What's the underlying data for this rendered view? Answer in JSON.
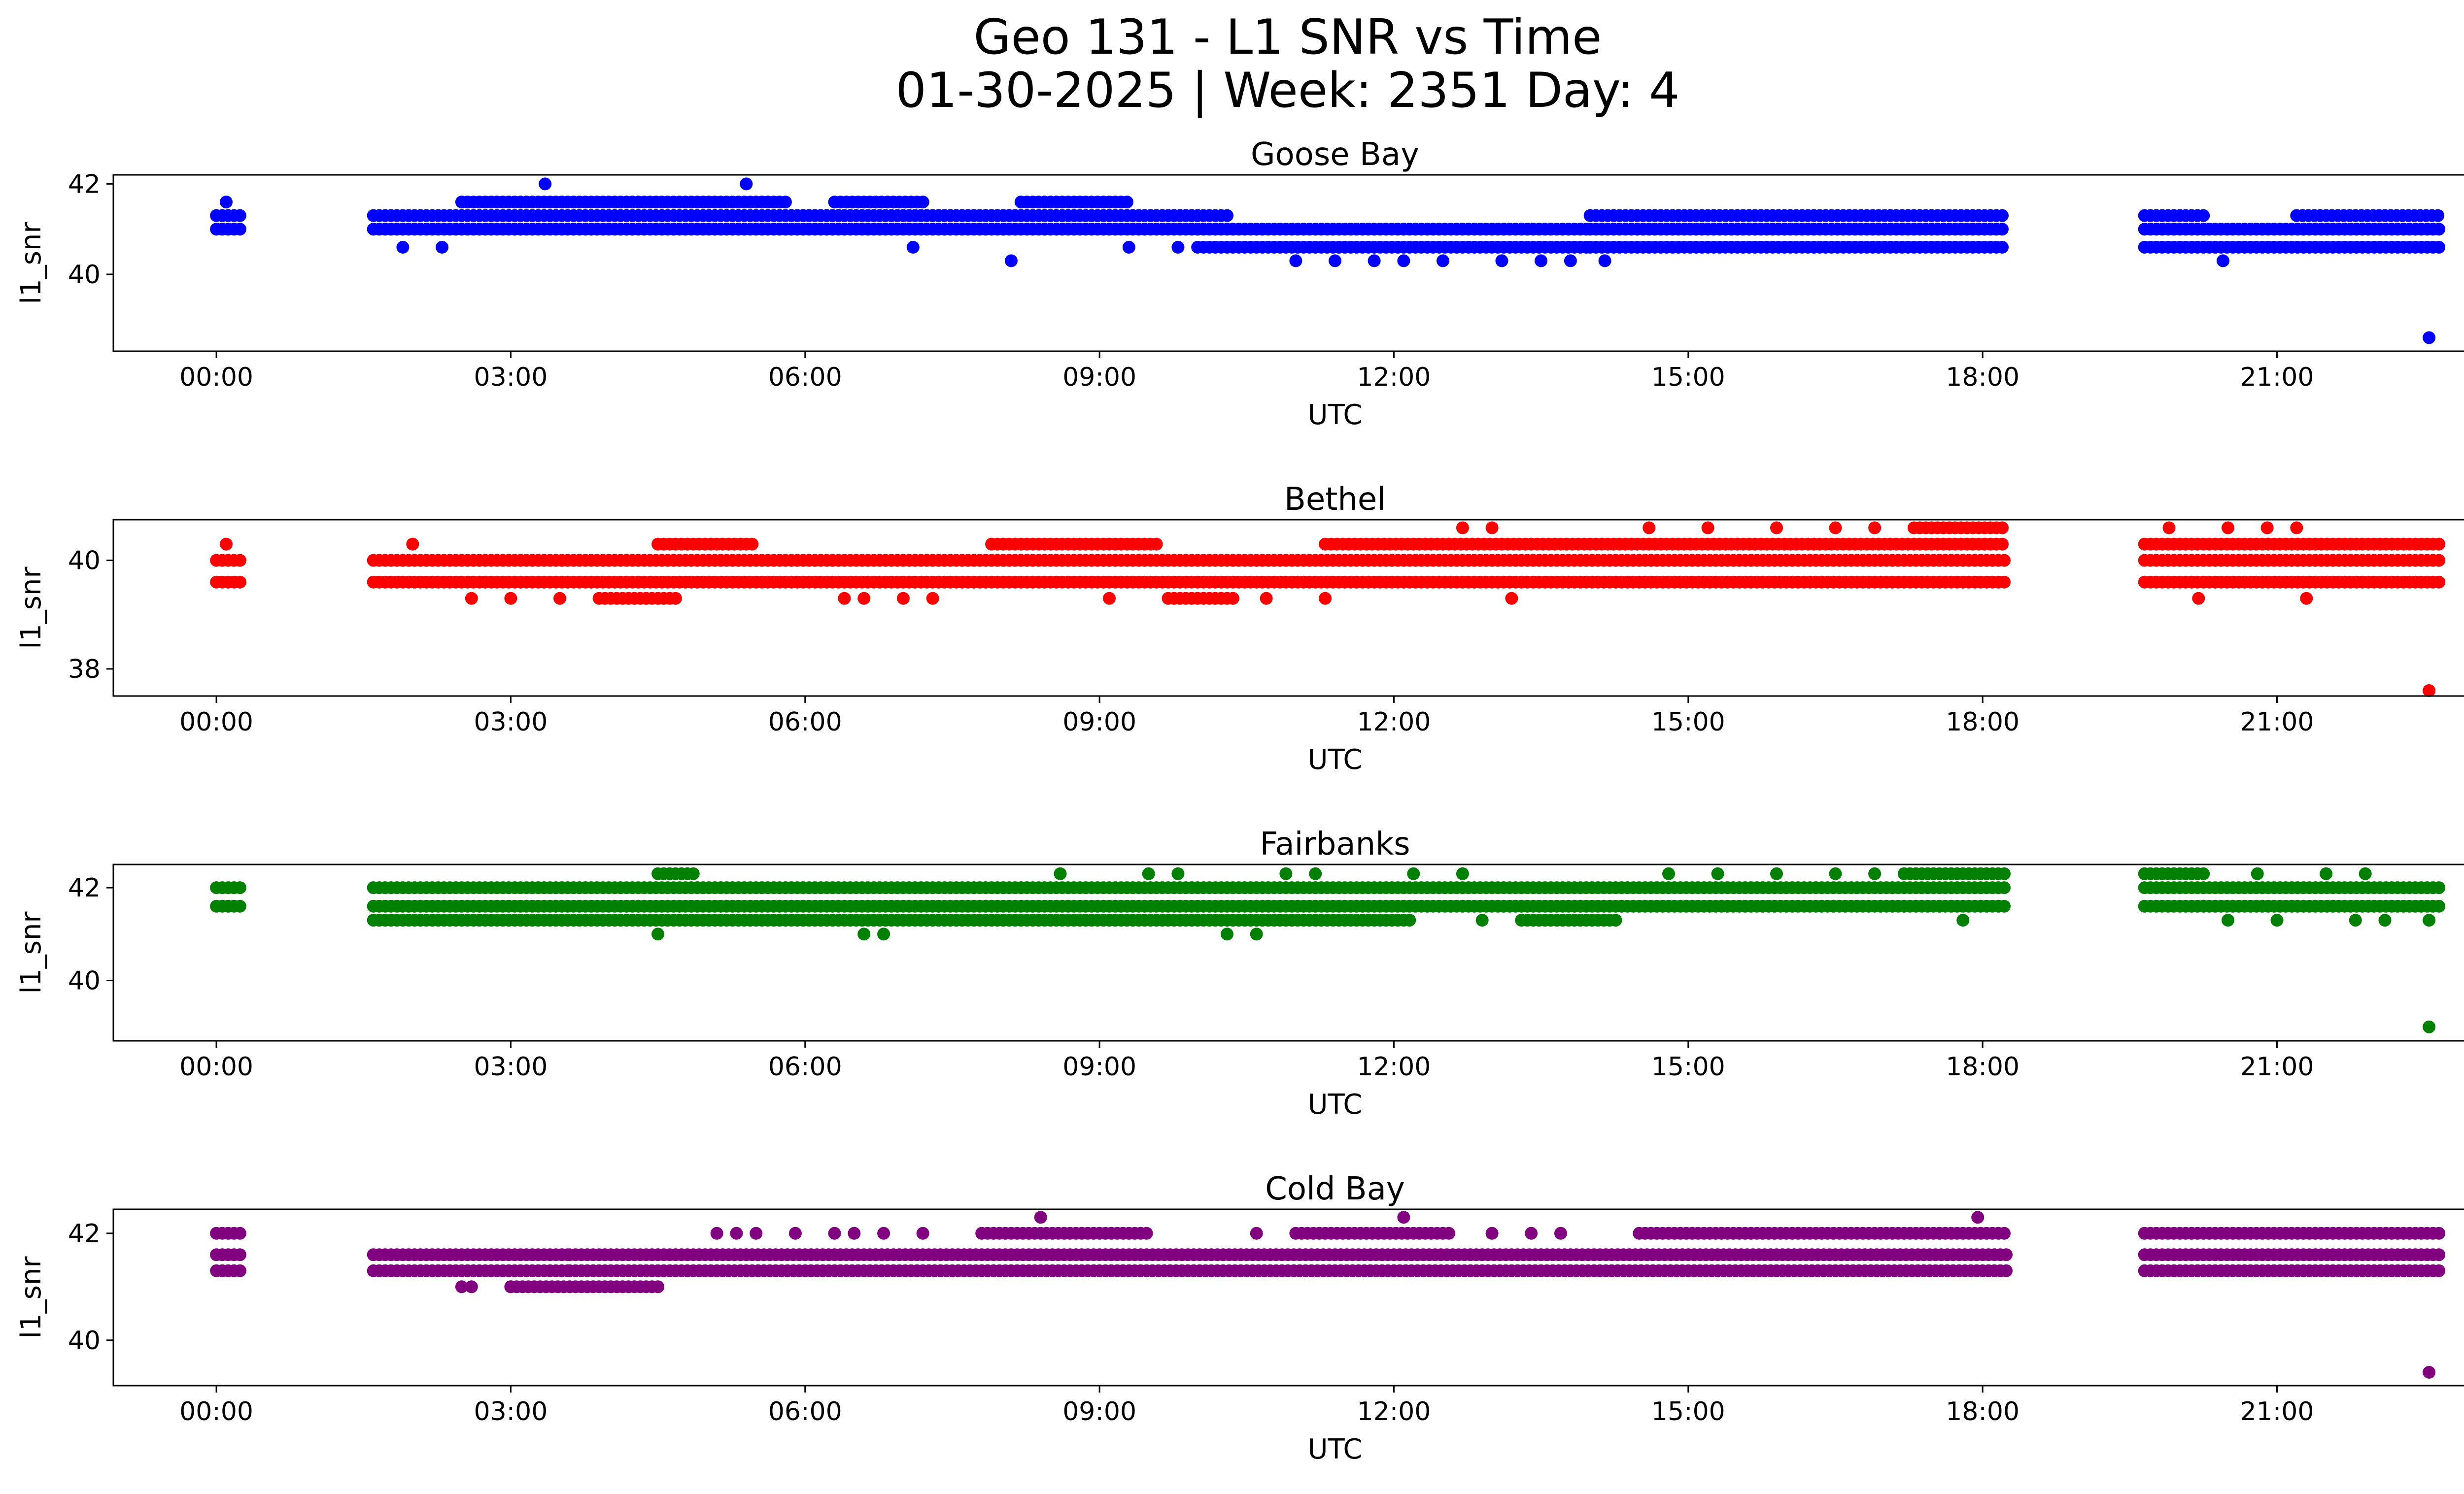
{
  "figure": {
    "title_line1": "Geo 131 - L1 SNR vs Time",
    "title_line2": "01-30-2025 | Week: 2351 Day: 4"
  },
  "chart_data": [
    {
      "type": "scatter",
      "title": "Goose Bay",
      "color": "#0000ff",
      "xlabel": "UTC",
      "ylabel": "l1_snr",
      "x_unit": "hours UTC",
      "xlim": [
        -1.05,
        23.85
      ],
      "ylim": [
        38.3,
        42.2
      ],
      "x_ticks": [
        0,
        3,
        6,
        9,
        12,
        15,
        18,
        21
      ],
      "x_tick_labels": [
        "00:00",
        "03:00",
        "06:00",
        "09:00",
        "12:00",
        "15:00",
        "18:00",
        "21:00"
      ],
      "y_ticks": [
        40,
        42
      ],
      "y_tick_labels": [
        "40",
        "42"
      ],
      "segments": [
        {
          "start": 0.0,
          "end": 0.25,
          "levels": [
            41.0,
            41.3
          ]
        },
        {
          "start": 1.6,
          "end": 10.0,
          "levels": [
            41.0,
            41.3
          ]
        },
        {
          "start": 2.5,
          "end": 5.8,
          "levels": [
            41.6
          ]
        },
        {
          "start": 5.8,
          "end": 10.3,
          "levels": [
            41.3
          ]
        },
        {
          "start": 6.3,
          "end": 7.2,
          "levels": [
            41.6
          ]
        },
        {
          "start": 8.2,
          "end": 9.3,
          "levels": [
            41.6
          ]
        },
        {
          "start": 10.0,
          "end": 14.0,
          "levels": [
            40.6,
            41.0
          ]
        },
        {
          "start": 14.0,
          "end": 18.25,
          "levels": [
            40.6,
            41.0,
            41.3
          ]
        },
        {
          "start": 19.65,
          "end": 22.65,
          "levels": [
            40.6,
            41.0
          ]
        },
        {
          "start": 19.65,
          "end": 20.3,
          "levels": [
            41.3
          ]
        },
        {
          "start": 21.2,
          "end": 22.65,
          "levels": [
            41.3
          ]
        }
      ],
      "points": [
        [
          0.1,
          41.6
        ],
        [
          3.35,
          42.0
        ],
        [
          5.4,
          42.0
        ],
        [
          8.1,
          40.3
        ],
        [
          11.0,
          40.3
        ],
        [
          11.4,
          40.3
        ],
        [
          11.8,
          40.3
        ],
        [
          12.1,
          40.3
        ],
        [
          12.5,
          40.3
        ],
        [
          13.1,
          40.3
        ],
        [
          13.5,
          40.3
        ],
        [
          13.8,
          40.3
        ],
        [
          14.15,
          40.3
        ],
        [
          20.45,
          40.3
        ],
        [
          1.9,
          40.6
        ],
        [
          2.3,
          40.6
        ],
        [
          7.1,
          40.6
        ],
        [
          9.3,
          40.6
        ],
        [
          9.8,
          40.6
        ],
        [
          22.55,
          38.6
        ]
      ]
    },
    {
      "type": "scatter",
      "title": "Bethel",
      "color": "#ff0000",
      "xlabel": "UTC",
      "ylabel": "l1_snr",
      "x_unit": "hours UTC",
      "xlim": [
        -1.05,
        23.85
      ],
      "ylim": [
        37.5,
        40.75
      ],
      "x_ticks": [
        0,
        3,
        6,
        9,
        12,
        15,
        18,
        21
      ],
      "x_tick_labels": [
        "00:00",
        "03:00",
        "06:00",
        "09:00",
        "12:00",
        "15:00",
        "18:00",
        "21:00"
      ],
      "y_ticks": [
        38,
        40
      ],
      "y_tick_labels": [
        "38",
        "40"
      ],
      "segments": [
        {
          "start": 0.0,
          "end": 0.25,
          "levels": [
            39.6,
            40.0
          ]
        },
        {
          "start": 1.6,
          "end": 18.25,
          "levels": [
            39.6,
            40.0
          ]
        },
        {
          "start": 4.5,
          "end": 5.5,
          "levels": [
            40.3
          ]
        },
        {
          "start": 7.9,
          "end": 9.6,
          "levels": [
            40.3
          ]
        },
        {
          "start": 11.3,
          "end": 18.25,
          "levels": [
            40.3
          ]
        },
        {
          "start": 19.65,
          "end": 22.65,
          "levels": [
            39.6,
            40.0,
            40.3
          ]
        },
        {
          "start": 17.3,
          "end": 18.25,
          "levels": [
            40.6
          ]
        },
        {
          "start": 9.7,
          "end": 10.4,
          "levels": [
            39.3
          ]
        },
        {
          "start": 3.9,
          "end": 4.7,
          "levels": [
            39.3
          ]
        }
      ],
      "points": [
        [
          0.1,
          40.3
        ],
        [
          2.0,
          40.3
        ],
        [
          2.6,
          39.3
        ],
        [
          3.0,
          39.3
        ],
        [
          3.5,
          39.3
        ],
        [
          6.4,
          39.3
        ],
        [
          6.6,
          39.3
        ],
        [
          7.0,
          39.3
        ],
        [
          7.3,
          39.3
        ],
        [
          9.1,
          39.3
        ],
        [
          10.7,
          39.3
        ],
        [
          11.3,
          39.3
        ],
        [
          13.2,
          39.3
        ],
        [
          20.2,
          39.3
        ],
        [
          21.3,
          39.3
        ],
        [
          12.7,
          40.6
        ],
        [
          13.0,
          40.6
        ],
        [
          14.6,
          40.6
        ],
        [
          15.2,
          40.6
        ],
        [
          15.9,
          40.6
        ],
        [
          16.5,
          40.6
        ],
        [
          16.9,
          40.6
        ],
        [
          19.9,
          40.6
        ],
        [
          20.5,
          40.6
        ],
        [
          20.9,
          40.6
        ],
        [
          21.2,
          40.6
        ],
        [
          22.55,
          37.6
        ]
      ]
    },
    {
      "type": "scatter",
      "title": "Fairbanks",
      "color": "#008000",
      "xlabel": "UTC",
      "ylabel": "l1_snr",
      "x_unit": "hours UTC",
      "xlim": [
        -1.05,
        23.85
      ],
      "ylim": [
        38.7,
        42.5
      ],
      "x_ticks": [
        0,
        3,
        6,
        9,
        12,
        15,
        18,
        21
      ],
      "x_tick_labels": [
        "00:00",
        "03:00",
        "06:00",
        "09:00",
        "12:00",
        "15:00",
        "18:00",
        "21:00"
      ],
      "y_ticks": [
        40,
        42
      ],
      "y_tick_labels": [
        "40",
        "42"
      ],
      "segments": [
        {
          "start": 0.0,
          "end": 0.25,
          "levels": [
            41.6,
            42.0
          ]
        },
        {
          "start": 1.6,
          "end": 18.25,
          "levels": [
            41.6,
            42.0
          ]
        },
        {
          "start": 1.6,
          "end": 12.2,
          "levels": [
            41.3
          ]
        },
        {
          "start": 13.3,
          "end": 14.3,
          "levels": [
            41.3
          ]
        },
        {
          "start": 19.65,
          "end": 22.65,
          "levels": [
            41.6,
            42.0
          ]
        },
        {
          "start": 19.65,
          "end": 20.3,
          "levels": [
            42.3
          ]
        },
        {
          "start": 17.2,
          "end": 18.25,
          "levels": [
            42.3
          ]
        },
        {
          "start": 4.5,
          "end": 4.9,
          "levels": [
            42.3
          ]
        }
      ],
      "points": [
        [
          4.5,
          41.0
        ],
        [
          6.6,
          41.0
        ],
        [
          6.8,
          41.0
        ],
        [
          10.3,
          41.0
        ],
        [
          10.6,
          41.0
        ],
        [
          8.6,
          42.3
        ],
        [
          9.5,
          42.3
        ],
        [
          9.8,
          42.3
        ],
        [
          10.9,
          42.3
        ],
        [
          11.2,
          42.3
        ],
        [
          12.2,
          42.3
        ],
        [
          12.7,
          42.3
        ],
        [
          14.8,
          42.3
        ],
        [
          15.3,
          42.3
        ],
        [
          15.9,
          42.3
        ],
        [
          16.5,
          42.3
        ],
        [
          16.9,
          42.3
        ],
        [
          20.8,
          42.3
        ],
        [
          21.5,
          42.3
        ],
        [
          21.9,
          42.3
        ],
        [
          12.9,
          41.3
        ],
        [
          20.5,
          41.3
        ],
        [
          21.0,
          41.3
        ],
        [
          21.8,
          41.3
        ],
        [
          22.1,
          41.3
        ],
        [
          22.55,
          41.3
        ],
        [
          17.8,
          41.3
        ],
        [
          22.55,
          39.0
        ]
      ]
    },
    {
      "type": "scatter",
      "title": "Cold Bay",
      "color": "#800080",
      "xlabel": "UTC",
      "ylabel": "l1_snr",
      "x_unit": "hours UTC",
      "xlim": [
        -1.05,
        23.85
      ],
      "ylim": [
        39.15,
        42.45
      ],
      "x_ticks": [
        0,
        3,
        6,
        9,
        12,
        15,
        18,
        21
      ],
      "x_tick_labels": [
        "00:00",
        "03:00",
        "06:00",
        "09:00",
        "12:00",
        "15:00",
        "18:00",
        "21:00"
      ],
      "y_ticks": [
        40,
        42
      ],
      "y_tick_labels": [
        "40",
        "42"
      ],
      "segments": [
        {
          "start": 0.0,
          "end": 0.25,
          "levels": [
            41.3,
            41.6,
            42.0
          ]
        },
        {
          "start": 1.6,
          "end": 3.6,
          "levels": [
            41.3,
            41.6
          ]
        },
        {
          "start": 3.6,
          "end": 18.25,
          "levels": [
            41.3,
            41.6
          ]
        },
        {
          "start": 3.0,
          "end": 4.5,
          "levels": [
            41.0
          ]
        },
        {
          "start": 7.8,
          "end": 9.5,
          "levels": [
            42.0
          ]
        },
        {
          "start": 11.0,
          "end": 12.6,
          "levels": [
            42.0
          ]
        },
        {
          "start": 14.5,
          "end": 18.25,
          "levels": [
            42.0
          ]
        },
        {
          "start": 19.65,
          "end": 22.65,
          "levels": [
            41.3,
            41.6,
            42.0
          ]
        }
      ],
      "points": [
        [
          2.5,
          41.0
        ],
        [
          2.6,
          41.0
        ],
        [
          3.0,
          41.0
        ],
        [
          5.1,
          42.0
        ],
        [
          5.3,
          42.0
        ],
        [
          5.5,
          42.0
        ],
        [
          5.9,
          42.0
        ],
        [
          6.3,
          42.0
        ],
        [
          6.5,
          42.0
        ],
        [
          6.8,
          42.0
        ],
        [
          7.2,
          42.0
        ],
        [
          10.6,
          42.0
        ],
        [
          13.0,
          42.0
        ],
        [
          13.4,
          42.0
        ],
        [
          13.7,
          42.0
        ],
        [
          8.4,
          42.3
        ],
        [
          12.1,
          42.3
        ],
        [
          17.95,
          42.3
        ],
        [
          22.55,
          39.4
        ]
      ]
    }
  ]
}
